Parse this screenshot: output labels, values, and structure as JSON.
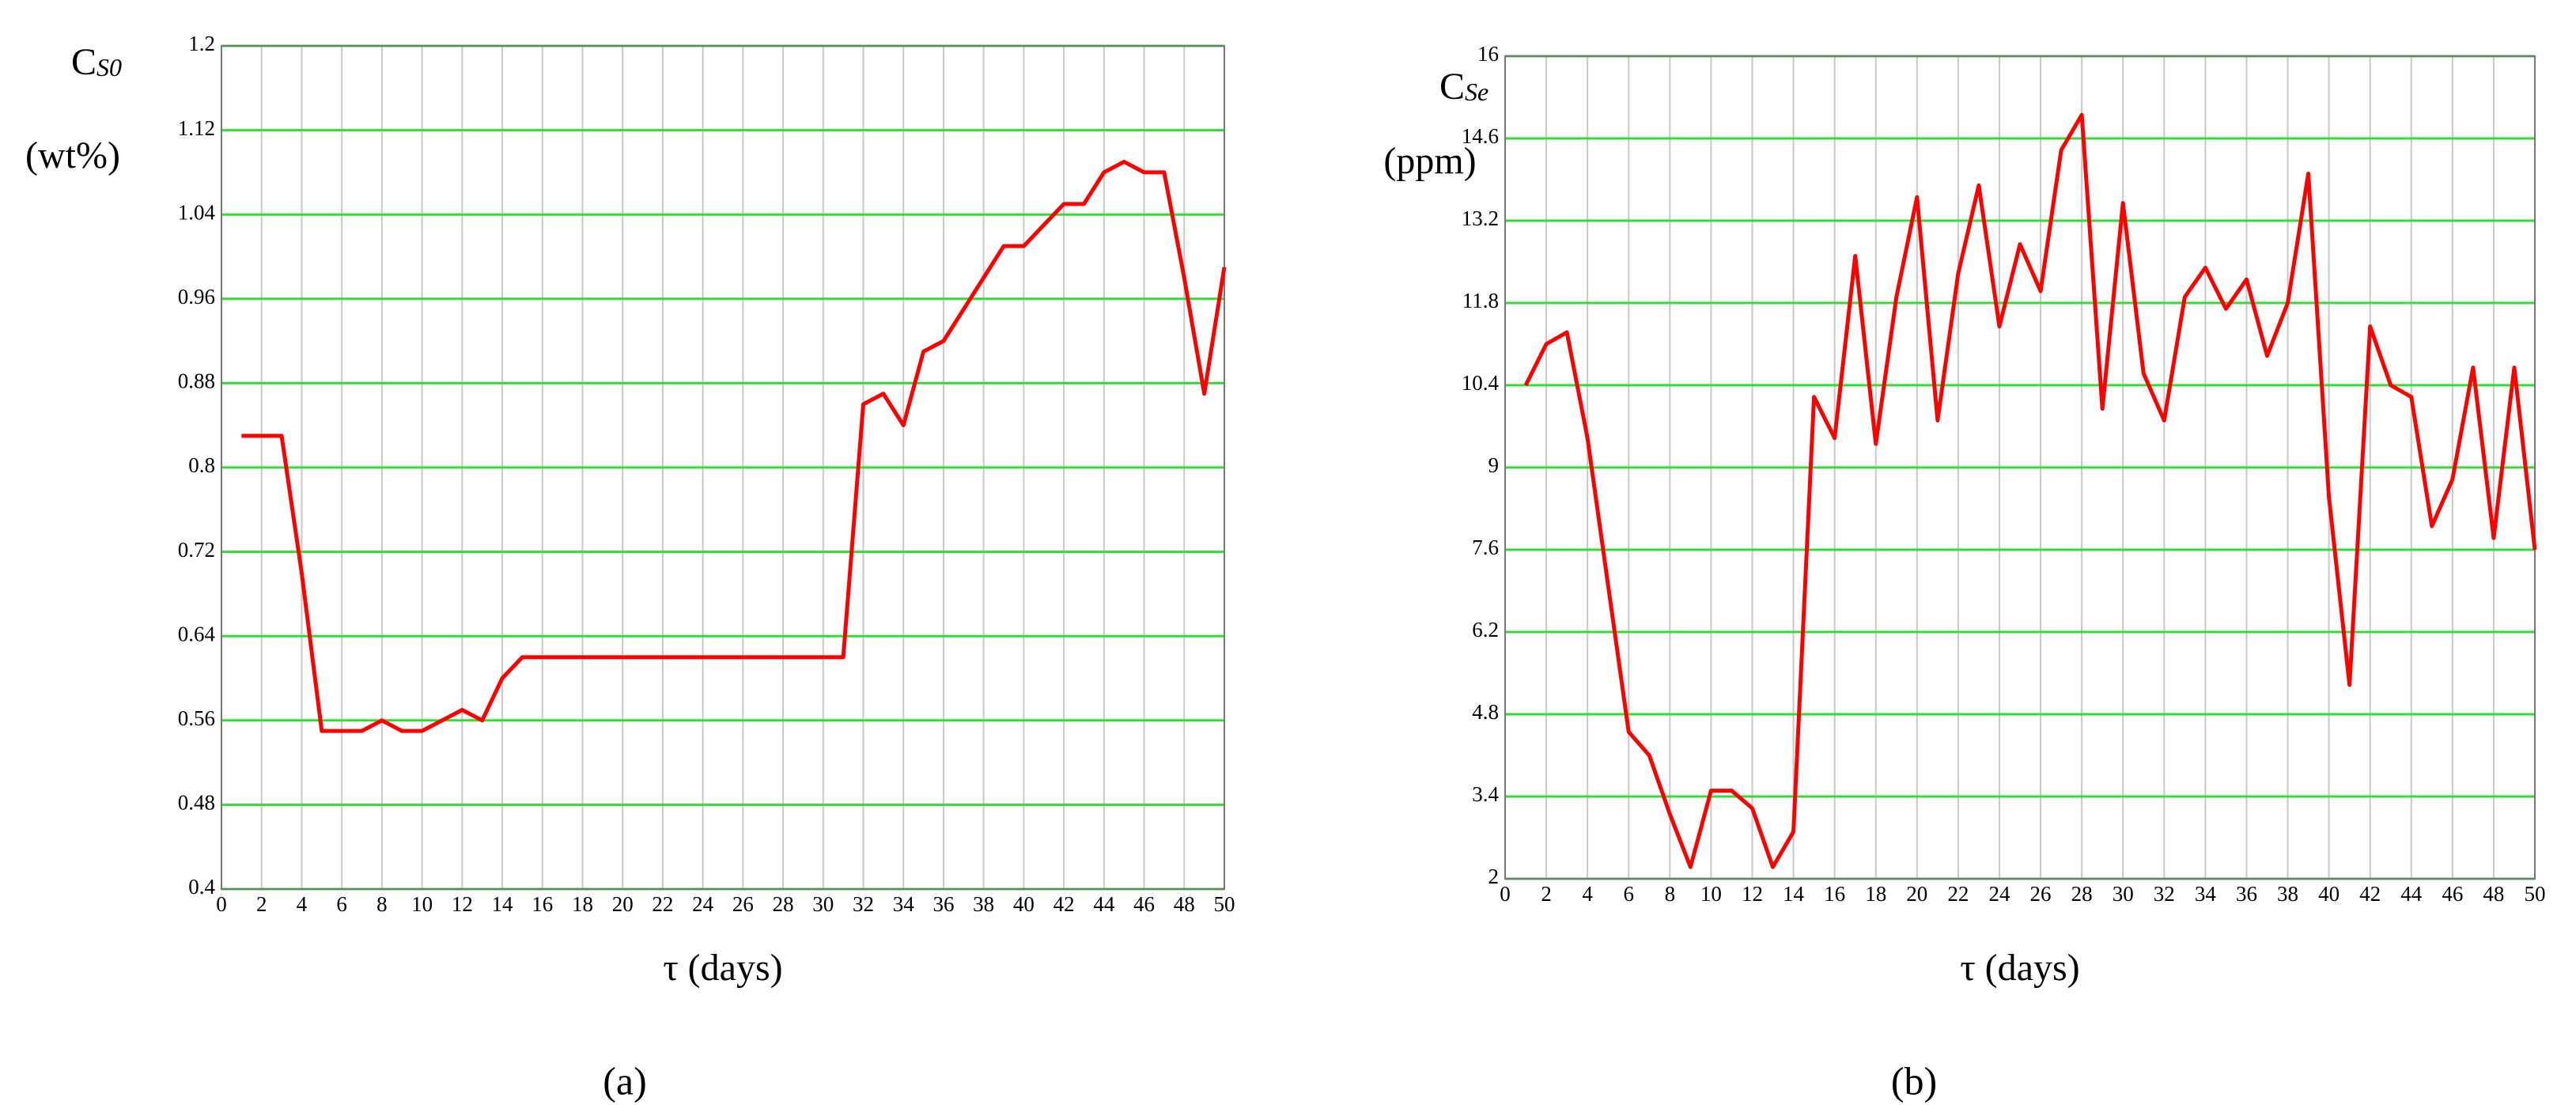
{
  "chart_data": [
    {
      "type": "line",
      "panel_label": "(a)",
      "ylabel_symbol": "C",
      "ylabel_subscript": "S0",
      "ylabel_unit": "(wt%)",
      "xlabel": "τ (days)",
      "x": [
        1,
        2,
        3,
        4,
        5,
        6,
        7,
        8,
        9,
        10,
        11,
        12,
        13,
        14,
        15,
        16,
        17,
        18,
        19,
        20,
        21,
        22,
        23,
        24,
        25,
        26,
        27,
        28,
        29,
        30,
        31,
        32,
        33,
        34,
        35,
        36,
        37,
        38,
        39,
        40,
        41,
        42,
        43,
        44,
        45,
        46,
        47,
        48,
        49,
        50
      ],
      "series": [
        {
          "color": "#ff0000",
          "values": [
            0.83,
            0.83,
            0.83,
            0.7,
            0.55,
            0.55,
            0.55,
            0.56,
            0.55,
            0.55,
            0.56,
            0.57,
            0.56,
            0.6,
            0.62,
            0.62,
            0.62,
            0.62,
            0.62,
            0.62,
            0.62,
            0.62,
            0.62,
            0.62,
            0.62,
            0.62,
            0.62,
            0.62,
            0.62,
            0.62,
            0.62,
            0.86,
            0.87,
            0.84,
            0.91,
            0.92,
            0.95,
            0.98,
            1.01,
            1.01,
            1.03,
            1.05,
            1.05,
            1.08,
            1.09,
            1.08,
            1.08,
            0.98,
            0.87,
            0.99
          ]
        }
      ],
      "xlim": [
        0,
        50
      ],
      "xticks": [
        0,
        2,
        4,
        6,
        8,
        10,
        12,
        14,
        16,
        18,
        20,
        22,
        24,
        26,
        28,
        30,
        32,
        34,
        36,
        38,
        40,
        42,
        44,
        46,
        48,
        50
      ],
      "ylim": [
        0.4,
        1.2
      ],
      "yticks": [
        0.4,
        0.48,
        0.56,
        0.64,
        0.72,
        0.8,
        0.88,
        0.96,
        1.04,
        1.12,
        1.2
      ],
      "grid": true,
      "xgrid_color": "#c8c8c8",
      "ygrid_color": "#33dd33"
    },
    {
      "type": "line",
      "panel_label": "(b)",
      "ylabel_symbol": "C",
      "ylabel_subscript": "Se",
      "ylabel_unit": "(ppm)",
      "xlabel": "τ (days)",
      "x": [
        1,
        2,
        3,
        4,
        5,
        6,
        7,
        8,
        9,
        10,
        11,
        12,
        13,
        14,
        15,
        16,
        17,
        18,
        19,
        20,
        21,
        22,
        23,
        24,
        25,
        26,
        27,
        28,
        29,
        30,
        31,
        32,
        33,
        34,
        35,
        36,
        37,
        38,
        39,
        40,
        41,
        42,
        43,
        44,
        45,
        46,
        47,
        48,
        49,
        50
      ],
      "series": [
        {
          "color": "#ff0000",
          "values": [
            10.4,
            11.1,
            11.3,
            9.5,
            7,
            4.5,
            4.1,
            3.1,
            2.2,
            3.5,
            3.5,
            3.2,
            2.2,
            2.8,
            10.2,
            9.5,
            12.6,
            9.4,
            11.9,
            13.6,
            9.8,
            12.3,
            13.8,
            11.4,
            12.8,
            12,
            14.4,
            15,
            10,
            13.5,
            10.6,
            9.8,
            11.9,
            12.4,
            11.7,
            12.2,
            10.9,
            11.8,
            14,
            8.5,
            5.3,
            11.4,
            10.4,
            10.2,
            8,
            8.8,
            10.7,
            7.8,
            10.7,
            7.6
          ]
        }
      ],
      "xlim": [
        0,
        50
      ],
      "xticks": [
        0,
        2,
        4,
        6,
        8,
        10,
        12,
        14,
        16,
        18,
        20,
        22,
        24,
        26,
        28,
        30,
        32,
        34,
        36,
        38,
        40,
        42,
        44,
        46,
        48,
        50
      ],
      "ylim": [
        2,
        16
      ],
      "yticks": [
        2,
        3.4,
        4.8,
        6.2,
        7.6,
        9,
        10.4,
        11.8,
        13.2,
        14.6,
        16
      ],
      "grid": true,
      "xgrid_color": "#c8c8c8",
      "ygrid_color": "#33dd33"
    }
  ]
}
